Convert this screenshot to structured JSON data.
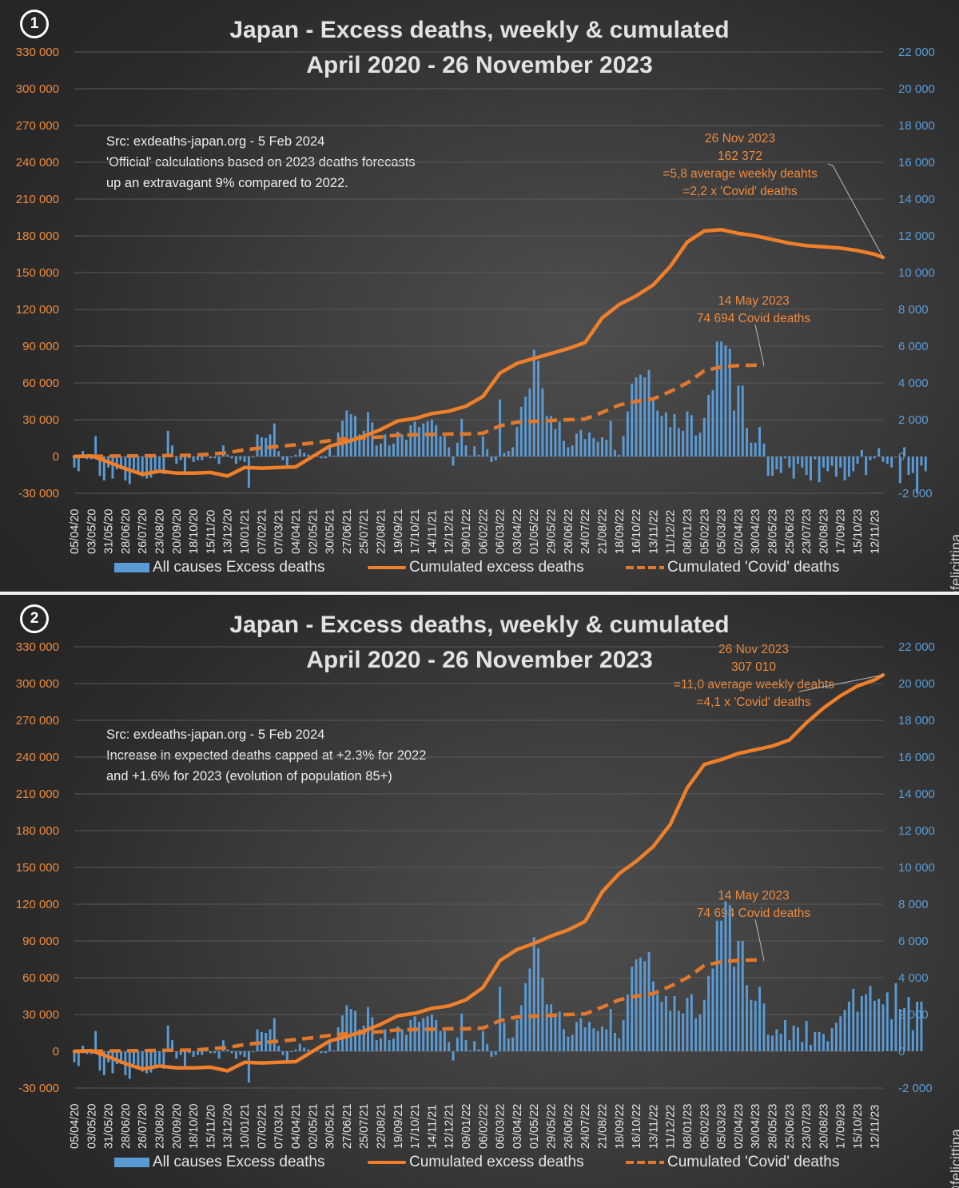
{
  "colors": {
    "left_axis": "#f08a3c",
    "right_axis": "#5b9bd5",
    "bars": "#5b9bd5",
    "cumulative_line": "#f07f2a",
    "covid_line": "#e0782e",
    "title": "#e2e2e2",
    "annotation": "#f08a3c"
  },
  "watermark": "@felicittina",
  "legend": {
    "bars": "All causes Excess deaths",
    "cumulative": "Cumulated excess deaths",
    "covid": "Cumulated 'Covid' deaths"
  },
  "panels": [
    {
      "badge": "1",
      "title_line1": "Japan - Excess deaths, weekly & cumulated",
      "title_line2": "April 2020 - 26 November 2023",
      "note": "Src: exdeaths-japan.org - 5 Feb 2024\n'Official' calculations based on 2023 deaths forecasts\nup an extravagant 9% compared to 2022.",
      "end_annotation": [
        "26 Nov 2023",
        "162 372",
        "=5,8 average weekly deahts",
        "=2,2 x 'Covid' deaths"
      ],
      "covid_annotation": [
        "14 May 2023",
        "74 694 Covid deaths"
      ]
    },
    {
      "badge": "2",
      "title_line1": "Japan - Excess deaths, weekly & cumulated",
      "title_line2": "April 2020 - 26 November 2023",
      "note": "Src: exdeaths-japan.org - 5 Feb 2024\nIncrease in expected deaths capped at +2.3% for 2022\nand +1.6% for 2023 (evolution of population 85+)",
      "end_annotation": [
        "26 Nov 2023",
        "307 010",
        "=11,0 average weekly deahts",
        "=4,1 x 'Covid' deaths"
      ],
      "covid_annotation": [
        "14 May 2023",
        "74 694 Covid deaths"
      ]
    }
  ],
  "chart_data": [
    {
      "type": "bar+line (dual axis)",
      "title": "Japan - Excess deaths, weekly & cumulated / April 2020 - 26 November 2023",
      "x_tick_labels": [
        "05/04/20",
        "03/05/20",
        "31/05/20",
        "28/06/20",
        "26/07/20",
        "23/08/20",
        "20/09/20",
        "18/10/20",
        "15/11/20",
        "13/12/20",
        "10/01/21",
        "07/02/21",
        "07/03/21",
        "04/04/21",
        "02/05/21",
        "30/05/21",
        "27/06/21",
        "25/07/21",
        "22/08/21",
        "19/09/21",
        "17/10/21",
        "14/11/21",
        "12/12/21",
        "09/01/22",
        "06/02/22",
        "06/03/22",
        "03/04/22",
        "01/05/22",
        "29/05/22",
        "26/06/22",
        "24/07/22",
        "21/08/22",
        "18/09/22",
        "16/10/22",
        "13/11/22",
        "11/12/22",
        "08/01/23",
        "05/02/23",
        "05/03/23",
        "02/04/23",
        "30/04/23",
        "28/05/23",
        "25/06/23",
        "23/07/23",
        "20/08/23",
        "17/09/23",
        "15/10/23",
        "12/11/23"
      ],
      "x_start": "05/04/20",
      "x_end": "26/11/23",
      "x_step": "weekly",
      "left_axis": {
        "min": -30000,
        "max": 330000,
        "step": 30000,
        "ticks": [
          "-30 000",
          "0",
          "30 000",
          "60 000",
          "90 000",
          "120 000",
          "150 000",
          "180 000",
          "210 000",
          "240 000",
          "270 000",
          "300 000",
          "330 000"
        ]
      },
      "right_axis": {
        "min": -2000,
        "max": 22000,
        "step": 2000,
        "ticks": [
          "-2 000",
          "0",
          "2 000",
          "4 000",
          "6 000",
          "8 000",
          "10 000",
          "12 000",
          "14 000",
          "16 000",
          "18 000",
          "20 000",
          "22 000"
        ]
      },
      "grid": true,
      "legend_position": "bottom",
      "series": [
        {
          "name": "All causes Excess deaths",
          "type": "bar",
          "axis": "right",
          "values": [
            -600,
            -800,
            300,
            -150,
            -150,
            1100,
            -1050,
            -1300,
            -600,
            -1200,
            -700,
            -700,
            -1300,
            -1500,
            -700,
            -900,
            -1100,
            -1200,
            -1150,
            -750,
            -700,
            -950,
            1400,
            600,
            -400,
            -200,
            -800,
            -100,
            -300,
            -200,
            -200,
            200,
            -100,
            -100,
            -400,
            600,
            100,
            -100,
            -400,
            -200,
            -300,
            -1700,
            -50,
            1200,
            1050,
            1000,
            1200,
            1800,
            300,
            -200,
            -600,
            -50,
            100,
            400,
            200,
            100,
            -50,
            100,
            -100,
            -100,
            500,
            50,
            1300,
            1950,
            2500,
            2300,
            2200,
            1200,
            1400,
            2400,
            1850,
            600,
            700,
            1200,
            600,
            700,
            1350,
            1200,
            900,
            1700,
            1900,
            1600,
            1800,
            1900,
            2000,
            1700,
            1100,
            1100,
            500,
            -500,
            750,
            2050,
            600,
            50,
            550,
            100,
            1100,
            400,
            -300,
            -200,
            3100,
            200,
            300,
            500,
            1600,
            2700,
            3250,
            3700,
            5800,
            5200,
            3700,
            2200,
            2200,
            1500,
            1900,
            850,
            500,
            600,
            1250,
            1450,
            950,
            1300,
            1000,
            800,
            1050,
            900,
            1950,
            350,
            100,
            1100,
            2450,
            3950,
            4300,
            4450,
            4300,
            4700,
            3150,
            2500,
            2200,
            2400,
            1600,
            2300,
            1550,
            1400,
            2450,
            2250,
            1150,
            1300,
            2100,
            3350,
            3600,
            6250,
            6250,
            6050,
            5850,
            2500,
            3850,
            3850,
            1550,
            750,
            750,
            1600,
            700,
            -1050,
            -1050,
            -700,
            -900,
            -100,
            -600,
            -1200,
            -400,
            -600,
            -1000,
            -1300,
            -150,
            -1400,
            -600,
            -800,
            -500,
            -1100,
            -600,
            -1300,
            -1100,
            -800,
            -400,
            350,
            -1000,
            -200,
            -100,
            450,
            -300,
            -400,
            -600,
            -50,
            -1450,
            500,
            -1000,
            -900,
            -2000,
            -500,
            -800
          ]
        },
        {
          "name": "Cumulated excess deaths",
          "type": "line",
          "axis": "left",
          "keypoints": {
            "05/04/20": 0,
            "03/05/20": 500,
            "31/05/20": -4500,
            "28/06/20": -10000,
            "26/07/20": -14500,
            "23/08/20": -12000,
            "20/09/20": -13500,
            "18/10/20": -13500,
            "15/11/20": -13000,
            "13/12/20": -16000,
            "10/01/21": -9000,
            "07/02/21": -9500,
            "07/03/21": -9000,
            "04/04/21": -8500,
            "02/05/21": 0,
            "30/05/21": 8500,
            "27/06/21": 12000,
            "25/07/21": 16500,
            "22/08/21": 22000,
            "19/09/21": 29000,
            "17/10/21": 31000,
            "14/11/21": 35000,
            "12/12/21": 37000,
            "09/01/22": 41000,
            "06/02/22": 49000,
            "06/03/22": 68000,
            "03/04/22": 76000,
            "01/05/22": 80000,
            "29/05/22": 84000,
            "26/06/22": 88000,
            "24/07/22": 93000,
            "21/08/22": 113000,
            "18/09/22": 124000,
            "16/10/22": 131000,
            "13/11/22": 140000,
            "11/12/22": 155000,
            "08/01/23": 175000,
            "05/02/23": 184000,
            "05/03/23": 185000,
            "02/04/23": 182000,
            "30/04/23": 180000,
            "28/05/23": 177000,
            "25/06/23": 174000,
            "23/07/23": 172000,
            "20/08/23": 171000,
            "17/09/23": 170000,
            "15/10/23": 168000,
            "12/11/23": 165000,
            "26/11/23": 162372
          }
        },
        {
          "name": "Cumulated 'Covid' deaths",
          "type": "line-dashed",
          "axis": "left",
          "keypoints": {
            "05/04/20": 0,
            "18/10/20": 1000,
            "13/12/20": 3000,
            "10/01/21": 5500,
            "07/02/21": 7000,
            "04/04/21": 9500,
            "02/05/21": 11000,
            "30/05/21": 13000,
            "27/06/21": 14500,
            "25/07/21": 15200,
            "22/08/21": 16000,
            "19/09/21": 17500,
            "12/12/21": 18300,
            "09/01/22": 18300,
            "06/02/22": 19000,
            "06/03/22": 25000,
            "03/04/22": 28000,
            "26/06/22": 30000,
            "24/07/22": 30500,
            "21/08/22": 36000,
            "18/09/22": 42000,
            "16/10/22": 45000,
            "13/11/22": 47000,
            "11/12/22": 53000,
            "08/01/23": 60000,
            "05/02/23": 70000,
            "05/03/23": 73000,
            "02/04/23": 74200,
            "14/05/23": 74694
          }
        }
      ]
    },
    {
      "type": "bar+line (dual axis)",
      "title": "Japan - Excess deaths, weekly & cumulated / April 2020 - 26 November 2023",
      "x_tick_labels": [
        "05/04/20",
        "03/05/20",
        "31/05/20",
        "28/06/20",
        "26/07/20",
        "23/08/20",
        "20/09/20",
        "18/10/20",
        "15/11/20",
        "13/12/20",
        "10/01/21",
        "07/02/21",
        "07/03/21",
        "04/04/21",
        "02/05/21",
        "30/05/21",
        "27/06/21",
        "25/07/21",
        "22/08/21",
        "19/09/21",
        "17/10/21",
        "14/11/21",
        "12/12/21",
        "09/01/22",
        "06/02/22",
        "06/03/22",
        "03/04/22",
        "01/05/22",
        "29/05/22",
        "26/06/22",
        "24/07/22",
        "21/08/22",
        "18/09/22",
        "16/10/22",
        "13/11/22",
        "11/12/22",
        "08/01/23",
        "05/02/23",
        "05/03/23",
        "02/04/23",
        "30/04/23",
        "28/05/23",
        "25/06/23",
        "23/07/23",
        "20/08/23",
        "17/09/23",
        "15/10/23",
        "12/11/23"
      ],
      "x_start": "05/04/20",
      "x_end": "26/11/23",
      "x_step": "weekly",
      "left_axis": {
        "min": -30000,
        "max": 330000,
        "step": 30000,
        "ticks": [
          "-30 000",
          "0",
          "30 000",
          "60 000",
          "90 000",
          "120 000",
          "150 000",
          "180 000",
          "210 000",
          "240 000",
          "270 000",
          "300 000",
          "330 000"
        ]
      },
      "right_axis": {
        "min": -2000,
        "max": 22000,
        "step": 2000,
        "ticks": [
          "-2 000",
          "0",
          "2 000",
          "4 000",
          "6 000",
          "8 000",
          "10 000",
          "12 000",
          "14 000",
          "16 000",
          "18 000",
          "20 000",
          "22 000"
        ]
      },
      "grid": true,
      "legend_position": "bottom",
      "series": [
        {
          "name": "All causes Excess deaths",
          "type": "bar",
          "axis": "right",
          "values": [
            -600,
            -800,
            300,
            -150,
            -150,
            1100,
            -1050,
            -1300,
            -600,
            -1200,
            -700,
            -700,
            -1300,
            -1500,
            -700,
            -900,
            -1100,
            -1200,
            -1150,
            -750,
            -700,
            -950,
            1400,
            600,
            -400,
            -200,
            -800,
            -100,
            -300,
            -200,
            -200,
            200,
            -100,
            -100,
            -400,
            600,
            100,
            -100,
            -400,
            -200,
            -300,
            -1700,
            -50,
            1200,
            1050,
            1000,
            1200,
            1800,
            300,
            -200,
            -600,
            -50,
            100,
            400,
            200,
            100,
            -50,
            100,
            -100,
            -100,
            500,
            50,
            1300,
            1950,
            2500,
            2300,
            2200,
            1200,
            1400,
            2400,
            1850,
            600,
            700,
            1200,
            600,
            700,
            1350,
            1200,
            900,
            1700,
            1900,
            1600,
            1800,
            1900,
            2000,
            1700,
            1100,
            1100,
            500,
            -500,
            750,
            2050,
            600,
            50,
            550,
            100,
            1100,
            400,
            -300,
            -200,
            3500,
            1550,
            700,
            750,
            1700,
            2500,
            3700,
            4500,
            6200,
            5600,
            4000,
            2550,
            2550,
            2000,
            2150,
            1200,
            800,
            900,
            1600,
            1800,
            1300,
            1600,
            1250,
            1100,
            1350,
            1200,
            2300,
            1000,
            700,
            1700,
            3100,
            4600,
            5000,
            5100,
            4900,
            5400,
            3800,
            3100,
            2700,
            3000,
            2200,
            3000,
            2200,
            2050,
            2900,
            3100,
            1800,
            2000,
            2800,
            4100,
            4500,
            7100,
            7100,
            8150,
            7950,
            4600,
            6000,
            6000,
            3600,
            2800,
            2750,
            3500,
            2600,
            900,
            850,
            1200,
            950,
            1700,
            600,
            1400,
            1300,
            500,
            1650,
            350,
            1050,
            1050,
            950,
            550,
            1250,
            1550,
            1900,
            2250,
            2700,
            3400,
            2150,
            3000,
            3100,
            3550,
            2750,
            2850,
            2550,
            3200,
            1750,
            3700,
            2300,
            2350,
            2950,
            1150,
            2700,
            2700
          ]
        },
        {
          "name": "Cumulated excess deaths",
          "type": "line",
          "axis": "left",
          "keypoints": {
            "05/04/20": 0,
            "03/05/20": 500,
            "31/05/20": -4500,
            "28/06/20": -10000,
            "26/07/20": -14500,
            "23/08/20": -12000,
            "20/09/20": -13500,
            "18/10/20": -13500,
            "15/11/20": -13000,
            "13/12/20": -16000,
            "10/01/21": -9000,
            "07/02/21": -9500,
            "07/03/21": -9000,
            "04/04/21": -8500,
            "02/05/21": 0,
            "30/05/21": 8500,
            "27/06/21": 12000,
            "25/07/21": 16500,
            "22/08/21": 22000,
            "19/09/21": 29000,
            "17/10/21": 31000,
            "14/11/21": 35000,
            "12/12/21": 37000,
            "09/01/22": 42000,
            "06/02/22": 52000,
            "06/03/22": 74000,
            "03/04/22": 83000,
            "01/05/22": 88000,
            "29/05/22": 94000,
            "26/06/22": 99000,
            "24/07/22": 106000,
            "21/08/22": 130000,
            "18/09/22": 145000,
            "16/10/22": 155000,
            "13/11/22": 167000,
            "11/12/22": 185000,
            "08/01/23": 215000,
            "05/02/23": 234000,
            "05/03/23": 238000,
            "02/04/23": 243000,
            "30/04/23": 246000,
            "28/05/23": 249000,
            "25/06/23": 254000,
            "23/07/23": 268000,
            "20/08/23": 280000,
            "17/09/23": 290000,
            "15/10/23": 298000,
            "12/11/23": 303000,
            "26/11/23": 307010
          }
        },
        {
          "name": "Cumulated 'Covid' deaths",
          "type": "line-dashed",
          "axis": "left",
          "keypoints": {
            "05/04/20": 0,
            "18/10/20": 1000,
            "13/12/20": 3000,
            "10/01/21": 5500,
            "07/02/21": 7000,
            "04/04/21": 9500,
            "02/05/21": 11000,
            "30/05/21": 13000,
            "27/06/21": 14500,
            "25/07/21": 15200,
            "22/08/21": 16000,
            "19/09/21": 17500,
            "12/12/21": 18300,
            "09/01/22": 18300,
            "06/02/22": 19000,
            "06/03/22": 25000,
            "03/04/22": 28000,
            "26/06/22": 30000,
            "24/07/22": 30500,
            "21/08/22": 36000,
            "18/09/22": 42000,
            "16/10/22": 45000,
            "13/11/22": 47000,
            "11/12/22": 53000,
            "08/01/23": 60000,
            "05/02/23": 70000,
            "05/03/23": 73000,
            "02/04/23": 74200,
            "14/05/23": 74694
          }
        }
      ]
    }
  ]
}
